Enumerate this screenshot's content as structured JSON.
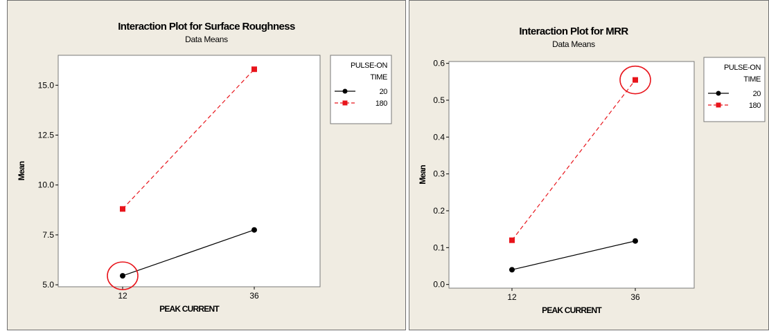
{
  "chart_data": [
    {
      "type": "line",
      "title": "Interaction Plot for Surface Roughness",
      "subtitle": "Data Means",
      "xlabel": "PEAK CURRENT",
      "ylabel": "Mean",
      "categories": [
        "12",
        "36"
      ],
      "ylim": [
        4.9,
        16.5
      ],
      "yticks": [
        "5.0",
        "7.5",
        "10.0",
        "12.5",
        "15.0"
      ],
      "legend_title": [
        "PULSE-ON",
        "TIME"
      ],
      "legend_position": "right",
      "series": [
        {
          "name": "20",
          "values": [
            5.45,
            7.75
          ],
          "color": "#000000",
          "marker": "circle",
          "dash": "solid"
        },
        {
          "name": "180",
          "values": [
            8.8,
            15.8
          ],
          "color": "#e8141b",
          "marker": "square",
          "dash": "dashed"
        }
      ],
      "annotations": [
        {
          "type": "circle",
          "series": "20",
          "category": "12",
          "color": "#e8141b"
        }
      ]
    },
    {
      "type": "line",
      "title": "Interaction Plot for MRR",
      "subtitle": "Data Means",
      "xlabel": "PEAK CURRENT",
      "ylabel": "Mean",
      "categories": [
        "12",
        "36"
      ],
      "ylim": [
        -0.01,
        0.605
      ],
      "yticks": [
        "0.0",
        "0.1",
        "0.2",
        "0.3",
        "0.4",
        "0.5",
        "0.6"
      ],
      "legend_title": [
        "PULSE-ON",
        "TIME"
      ],
      "legend_position": "right",
      "series": [
        {
          "name": "20",
          "values": [
            0.04,
            0.118
          ],
          "color": "#000000",
          "marker": "circle",
          "dash": "solid"
        },
        {
          "name": "180",
          "values": [
            0.12,
            0.555
          ],
          "color": "#e8141b",
          "marker": "square",
          "dash": "dashed"
        }
      ],
      "annotations": [
        {
          "type": "circle",
          "series": "180",
          "category": "36",
          "color": "#e8141b"
        }
      ]
    }
  ]
}
